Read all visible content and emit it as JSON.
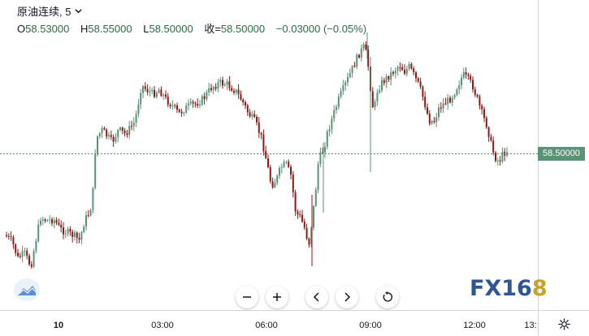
{
  "legend": {
    "symbol": "原油连续, 5",
    "open_label": "O",
    "open": "58.53000",
    "high_label": "H",
    "high": "58.55000",
    "low_label": "L",
    "low": "58.50000",
    "close_label": "收=",
    "close": "58.50000",
    "change": "−0.03000 (−0.05%)"
  },
  "price_axis": {
    "current_price": "58.50000"
  },
  "time_axis": {
    "ticks": [
      {
        "label": "10",
        "bold": true
      },
      {
        "label": "03:00"
      },
      {
        "label": "06:00"
      },
      {
        "label": "09:00"
      },
      {
        "label": "12:00"
      },
      {
        "label": "13:"
      }
    ]
  },
  "watermark": {
    "text": "FX16",
    "accent": "8"
  },
  "colors": {
    "up": "#5a9276",
    "down": "#8b1a1a",
    "price_line": "#5a9276"
  },
  "icons": {
    "chevron": "chevron-down-icon",
    "settings": "gear-icon",
    "zoom_out": "minus-icon",
    "zoom_in": "plus-icon",
    "scroll_left": "chevron-left-icon",
    "scroll_right": "chevron-right-icon",
    "reset": "reset-icon",
    "logo": "cloud-chart-icon"
  }
}
